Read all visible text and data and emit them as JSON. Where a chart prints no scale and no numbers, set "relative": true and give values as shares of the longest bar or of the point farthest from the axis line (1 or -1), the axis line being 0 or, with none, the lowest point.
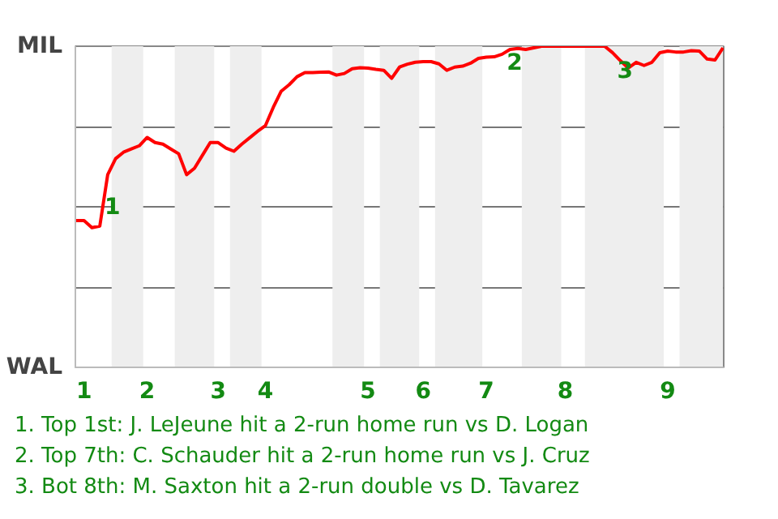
{
  "chart_data": {
    "type": "line",
    "relative": true,
    "categories": [
      null,
      "1",
      null,
      null,
      null,
      null,
      null,
      null,
      null,
      "2",
      null,
      null,
      null,
      null,
      null,
      null,
      null,
      null,
      "3",
      null,
      null,
      null,
      null,
      null,
      "4",
      null,
      null,
      null,
      null,
      null,
      null,
      null,
      null,
      null,
      null,
      null,
      null,
      "5",
      null,
      null,
      null,
      null,
      null,
      null,
      "6",
      null,
      null,
      null,
      null,
      null,
      null,
      null,
      "7",
      null,
      null,
      null,
      null,
      null,
      null,
      null,
      null,
      null,
      "8",
      null,
      null,
      null,
      null,
      null,
      null,
      null,
      null,
      null,
      null,
      null,
      null,
      "9",
      null,
      null,
      null,
      null,
      null,
      null,
      null
    ],
    "series": [
      {
        "color": "#ff0000",
        "values": [
          0.457,
          0.457,
          0.435,
          0.44,
          0.6,
          0.65,
          0.67,
          0.68,
          0.69,
          0.716,
          0.7,
          0.695,
          0.68,
          0.665,
          0.6,
          0.62,
          0.66,
          0.7,
          0.7,
          0.683,
          0.673,
          0.695,
          0.715,
          0.735,
          0.753,
          0.81,
          0.86,
          0.88,
          0.905,
          0.918,
          0.918,
          0.919,
          0.92,
          0.91,
          0.915,
          0.93,
          0.933,
          0.932,
          0.928,
          0.925,
          0.9,
          0.935,
          0.944,
          0.95,
          0.952,
          0.952,
          0.945,
          0.925,
          0.935,
          0.938,
          0.947,
          0.962,
          0.966,
          0.967,
          0.975,
          0.99,
          0.993,
          0.99,
          0.995,
          1,
          1,
          1,
          1,
          1,
          1,
          1,
          1,
          1,
          0.98,
          0.955,
          0.932,
          0.95,
          0.94,
          0.95,
          0.98,
          0.985,
          0.982,
          0.982,
          0.986,
          0.985,
          0.96,
          0.957,
          0.995
        ]
      }
    ],
    "grid": "y",
    "annotations": [
      "MIL",
      "WAL",
      "1",
      "2",
      "3",
      "1. Top 1st: J. LeJeune hit a 2-run home run vs D. Logan",
      "2. Top 7th: C. Schauder hit a 2-run home run vs J. Cruz",
      "3. Bot 8th: M. Saxton hit a 2-run double vs D. Tavarez"
    ]
  }
}
